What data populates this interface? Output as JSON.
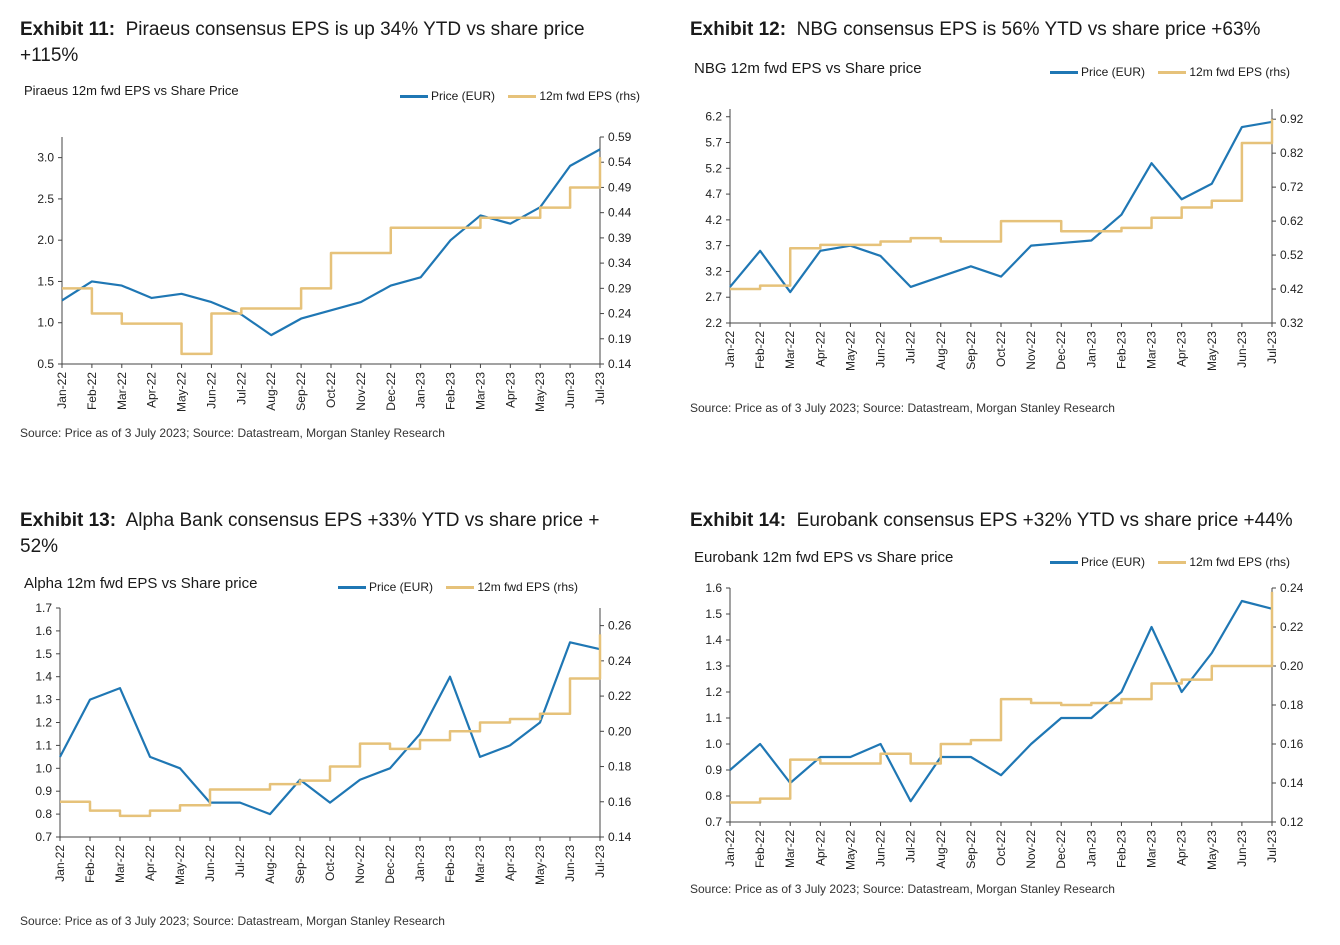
{
  "colors": {
    "price": "#1f77b4",
    "eps": "#e6c27a",
    "axis": "#444444"
  },
  "exhibits": [
    {
      "label": "Exhibit 11:",
      "title": "Piraeus consensus EPS is up 34% YTD vs share price +115%",
      "subtitle": "Piraeus 12m fwd EPS vs Share Price",
      "legend": {
        "price": "Price (EUR)",
        "eps": "12m fwd EPS (rhs)"
      },
      "source": "Source: Price as of 3 July 2023; Source: Datastream, Morgan Stanley Research"
    },
    {
      "label": "Exhibit 12:",
      "title": "NBG consensus EPS is 56% YTD vs share price +63%",
      "subtitle": "NBG 12m fwd EPS vs Share price",
      "legend": {
        "price": "Price (EUR)",
        "eps": "12m fwd EPS (rhs)"
      },
      "source": "Source: Price as of 3 July 2023; Source: Datastream, Morgan Stanley Research"
    },
    {
      "label": "Exhibit 13:",
      "title": "Alpha Bank consensus EPS +33% YTD vs share price + 52%",
      "subtitle": "Alpha 12m fwd EPS vs Share price",
      "legend": {
        "price": "Price (EUR)",
        "eps": "12m fwd EPS (rhs)"
      },
      "source": "Source: Price as of 3 July 2023; Source: Datastream, Morgan Stanley Research"
    },
    {
      "label": "Exhibit 14:",
      "title": "Eurobank consensus EPS +32% YTD vs share price +44%",
      "subtitle": "Eurobank 12m fwd EPS vs Share price",
      "legend": {
        "price": "Price (EUR)",
        "eps": "12m fwd EPS (rhs)"
      },
      "source": "Source: Price as of 3 July 2023; Source: Datastream, Morgan Stanley Research"
    }
  ],
  "chart_data": [
    {
      "type": "line",
      "title": "Piraeus 12m fwd EPS vs Share Price",
      "x": [
        "Jan-22",
        "Feb-22",
        "Mar-22",
        "Apr-22",
        "May-22",
        "Jun-22",
        "Jul-22",
        "Aug-22",
        "Sep-22",
        "Oct-22",
        "Nov-22",
        "Dec-22",
        "Jan-23",
        "Feb-23",
        "Mar-23",
        "Apr-23",
        "May-23",
        "Jun-23",
        "Jul-23"
      ],
      "y_left": {
        "ticks": [
          "0.5",
          "1.0",
          "1.5",
          "2.0",
          "2.5",
          "3.0"
        ],
        "ylim": [
          0.5,
          3.25
        ]
      },
      "y_right": {
        "ticks": [
          "0.14",
          "0.19",
          "0.24",
          "0.29",
          "0.34",
          "0.39",
          "0.44",
          "0.49",
          "0.54",
          "0.59"
        ],
        "ylim": [
          0.14,
          0.59
        ]
      },
      "series": [
        {
          "name": "Price (EUR)",
          "axis": "left",
          "values": [
            1.27,
            1.5,
            1.45,
            1.3,
            1.35,
            1.25,
            1.1,
            0.85,
            1.05,
            1.15,
            1.25,
            1.45,
            1.55,
            2.0,
            2.3,
            2.2,
            2.4,
            2.9,
            3.1
          ]
        },
        {
          "name": "12m fwd EPS (rhs)",
          "axis": "right",
          "step": true,
          "values": [
            0.29,
            0.24,
            0.22,
            0.22,
            0.16,
            0.24,
            0.25,
            0.25,
            0.29,
            0.36,
            0.36,
            0.41,
            0.41,
            0.41,
            0.43,
            0.43,
            0.45,
            0.49,
            0.55
          ]
        }
      ]
    },
    {
      "type": "line",
      "title": "NBG 12m fwd EPS vs Share price",
      "x": [
        "Jan-22",
        "Feb-22",
        "Mar-22",
        "Apr-22",
        "May-22",
        "Jun-22",
        "Jul-22",
        "Aug-22",
        "Sep-22",
        "Oct-22",
        "Nov-22",
        "Dec-22",
        "Jan-23",
        "Feb-23",
        "Mar-23",
        "Apr-23",
        "May-23",
        "Jun-23",
        "Jul-23"
      ],
      "y_left": {
        "ticks": [
          "2.2",
          "2.7",
          "3.2",
          "3.7",
          "4.2",
          "4.7",
          "5.2",
          "5.7",
          "6.2"
        ],
        "ylim": [
          2.2,
          6.35
        ]
      },
      "y_right": {
        "ticks": [
          "0.32",
          "0.42",
          "0.52",
          "0.62",
          "0.72",
          "0.82",
          "0.92"
        ],
        "ylim": [
          0.32,
          0.95
        ]
      },
      "series": [
        {
          "name": "Price (EUR)",
          "axis": "left",
          "values": [
            2.9,
            3.6,
            2.8,
            3.6,
            3.7,
            3.5,
            2.9,
            3.1,
            3.3,
            3.1,
            3.7,
            3.75,
            3.8,
            4.3,
            5.3,
            4.6,
            4.9,
            6.0,
            6.1
          ]
        },
        {
          "name": "12m fwd EPS (rhs)",
          "axis": "right",
          "step": true,
          "values": [
            0.42,
            0.43,
            0.54,
            0.55,
            0.55,
            0.56,
            0.57,
            0.56,
            0.56,
            0.62,
            0.62,
            0.59,
            0.59,
            0.6,
            0.63,
            0.66,
            0.68,
            0.85,
            0.92
          ]
        }
      ]
    },
    {
      "type": "line",
      "title": "Alpha 12m fwd EPS vs Share price",
      "x": [
        "Jan-22",
        "Feb-22",
        "Mar-22",
        "Apr-22",
        "May-22",
        "Jun-22",
        "Jul-22",
        "Aug-22",
        "Sep-22",
        "Oct-22",
        "Nov-22",
        "Dec-22",
        "Jan-23",
        "Feb-23",
        "Mar-23",
        "Apr-23",
        "May-23",
        "Jun-23",
        "Jul-23"
      ],
      "y_left": {
        "ticks": [
          "0.7",
          "0.8",
          "0.9",
          "1.0",
          "1.1",
          "1.2",
          "1.3",
          "1.4",
          "1.5",
          "1.6",
          "1.7"
        ],
        "ylim": [
          0.7,
          1.7
        ]
      },
      "y_right": {
        "ticks": [
          "0.14",
          "0.16",
          "0.18",
          "0.20",
          "0.22",
          "0.24",
          "0.26"
        ],
        "ylim": [
          0.14,
          0.27
        ]
      },
      "series": [
        {
          "name": "Price (EUR)",
          "axis": "left",
          "values": [
            1.05,
            1.3,
            1.35,
            1.05,
            1.0,
            0.85,
            0.85,
            0.8,
            0.95,
            0.85,
            0.95,
            1.0,
            1.15,
            1.4,
            1.05,
            1.1,
            1.2,
            1.55,
            1.52
          ]
        },
        {
          "name": "12m fwd EPS (rhs)",
          "axis": "right",
          "step": true,
          "values": [
            0.16,
            0.155,
            0.152,
            0.155,
            0.158,
            0.167,
            0.167,
            0.17,
            0.172,
            0.18,
            0.193,
            0.19,
            0.195,
            0.2,
            0.205,
            0.207,
            0.21,
            0.23,
            0.255
          ]
        }
      ]
    },
    {
      "type": "line",
      "title": "Eurobank 12m fwd EPS vs Share price",
      "x": [
        "Jan-22",
        "Feb-22",
        "Mar-22",
        "Apr-22",
        "May-22",
        "Jun-22",
        "Jul-22",
        "Aug-22",
        "Sep-22",
        "Oct-22",
        "Nov-22",
        "Dec-22",
        "Jan-23",
        "Feb-23",
        "Mar-23",
        "Apr-23",
        "May-23",
        "Jun-23",
        "Jul-23"
      ],
      "y_left": {
        "ticks": [
          "0.7",
          "0.8",
          "0.9",
          "1.0",
          "1.1",
          "1.2",
          "1.3",
          "1.4",
          "1.5",
          "1.6"
        ],
        "ylim": [
          0.7,
          1.6
        ]
      },
      "y_right": {
        "ticks": [
          "0.12",
          "0.14",
          "0.16",
          "0.18",
          "0.20",
          "0.22",
          "0.24"
        ],
        "ylim": [
          0.12,
          0.24
        ]
      },
      "series": [
        {
          "name": "Price (EUR)",
          "axis": "left",
          "values": [
            0.9,
            1.0,
            0.85,
            0.95,
            0.95,
            1.0,
            0.78,
            0.95,
            0.95,
            0.88,
            1.0,
            1.1,
            1.1,
            1.2,
            1.45,
            1.2,
            1.35,
            1.55,
            1.52
          ]
        },
        {
          "name": "12m fwd EPS (rhs)",
          "axis": "right",
          "step": true,
          "values": [
            0.13,
            0.132,
            0.152,
            0.15,
            0.15,
            0.155,
            0.15,
            0.16,
            0.162,
            0.183,
            0.181,
            0.18,
            0.181,
            0.183,
            0.191,
            0.193,
            0.2,
            0.2,
            0.238
          ]
        }
      ]
    }
  ]
}
